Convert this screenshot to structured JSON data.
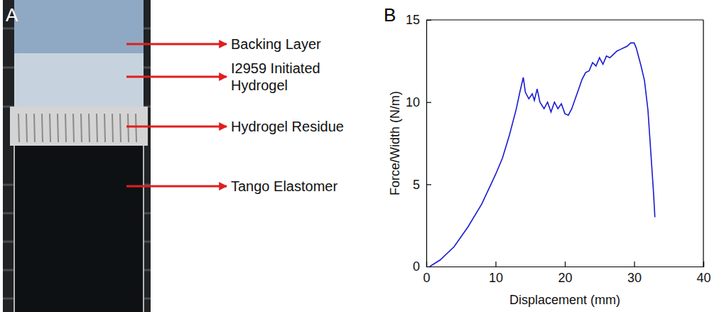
{
  "panel_letters": [
    "A",
    "B"
  ],
  "panel_a": {
    "labels": [
      "Backing Layer",
      "I2959 Initiated Hydrogel",
      "Hydrogel Residue",
      "Tango Elastomer"
    ]
  },
  "chart_data": {
    "type": "line",
    "x_label": "Displacement (mm)",
    "y_label": "Force/Width (N/m)",
    "x": [
      0.5,
      2,
      4,
      6,
      8,
      10,
      11,
      12,
      13,
      13.5,
      14,
      14.3,
      14.8,
      15.3,
      15.6,
      16,
      16.4,
      17,
      17.5,
      18,
      18.5,
      19,
      19.5,
      20,
      20.5,
      21,
      21.5,
      22,
      22.5,
      23,
      23.5,
      24,
      24.5,
      25,
      25.5,
      26,
      26.5,
      27,
      27.5,
      28,
      28.5,
      29,
      29.5,
      30,
      30.3,
      31,
      31.5,
      32,
      32.4,
      32.8,
      33
    ],
    "series": [
      {
        "name": "Force/Width",
        "color": "#1a1ad0",
        "values": [
          0,
          0.4,
          1.2,
          2.4,
          3.8,
          5.6,
          6.6,
          8.0,
          9.6,
          10.6,
          11.5,
          10.6,
          10.2,
          10.5,
          10.1,
          10.8,
          10.0,
          9.6,
          10.0,
          9.4,
          10.0,
          9.6,
          9.9,
          9.3,
          9.2,
          9.6,
          10.2,
          10.8,
          11.4,
          11.8,
          11.9,
          12.4,
          12.2,
          12.7,
          12.3,
          12.8,
          12.7,
          12.9,
          13.1,
          13.2,
          13.3,
          13.4,
          13.6,
          13.6,
          13.3,
          12.2,
          11.3,
          9.5,
          7.0,
          4.5,
          3.0
        ]
      }
    ],
    "xlim": [
      0,
      40
    ],
    "xticks": [
      0,
      10,
      20,
      30,
      40
    ],
    "ylim": [
      0,
      15
    ],
    "yticks": [
      0,
      5,
      10,
      15
    ]
  }
}
